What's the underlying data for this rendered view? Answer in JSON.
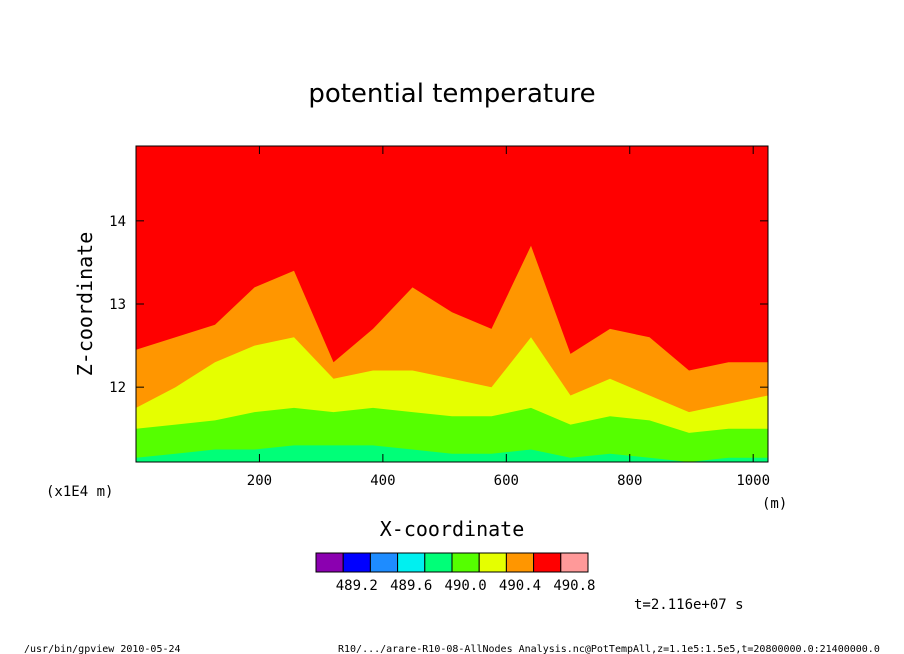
{
  "chart_data": {
    "type": "heatmap",
    "title": "potential temperature",
    "xlabel": "X-coordinate",
    "ylabel": "Z-coordinate",
    "x_unit": "(m)",
    "y_unit": "(x1E4 m)",
    "xlim": [
      0,
      1024
    ],
    "ylim": [
      11.1,
      14.9
    ],
    "x_ticks": [
      "200",
      "400",
      "600",
      "800",
      "1000"
    ],
    "y_ticks": [
      "12",
      "13",
      "14"
    ],
    "x_tick_values": [
      200,
      400,
      600,
      800,
      1000
    ],
    "y_tick_values": [
      12,
      13,
      14
    ],
    "colorbar": {
      "colors": [
        "#8b00b0",
        "#0000ff",
        "#1e8cff",
        "#00f0f0",
        "#00ff78",
        "#55ff00",
        "#e5ff00",
        "#ff9600",
        "#ff0000",
        "#ff9999"
      ],
      "labels": [
        "489.2",
        "489.6",
        "490.0",
        "490.4",
        "490.8"
      ]
    },
    "series": [
      {
        "name": "",
        "x": [
          0,
          64,
          128,
          192,
          256,
          320,
          384,
          448,
          512,
          576,
          640,
          704,
          768,
          832,
          896,
          960,
          1024
        ],
        "boundary_490_4": [
          12.45,
          12.6,
          12.75,
          13.2,
          13.4,
          12.3,
          12.7,
          13.2,
          12.9,
          12.7,
          13.7,
          12.4,
          12.7,
          12.6,
          12.2,
          12.3,
          12.3
        ],
        "boundary_490_2": [
          11.75,
          12.0,
          12.3,
          12.5,
          12.6,
          12.1,
          12.2,
          12.2,
          12.1,
          12.0,
          12.6,
          11.9,
          12.1,
          11.9,
          11.7,
          11.8,
          11.9
        ],
        "boundary_490_0": [
          11.5,
          11.55,
          11.6,
          11.7,
          11.75,
          11.7,
          11.75,
          11.7,
          11.65,
          11.65,
          11.75,
          11.55,
          11.65,
          11.6,
          11.45,
          11.5,
          11.5
        ],
        "boundary_489_8": [
          11.15,
          11.2,
          11.25,
          11.25,
          11.3,
          11.3,
          11.3,
          11.25,
          11.2,
          11.2,
          11.25,
          11.15,
          11.2,
          11.15,
          11.1,
          11.15,
          11.15
        ]
      }
    ]
  },
  "footer": {
    "time_label": "t=2.116e+07 s",
    "left": "/usr/bin/gpview  2010-05-24",
    "right": "R10/.../arare-R10-08-AllNodes_Analysis.nc@PotTempAll,z=1.1e5:1.5e5,t=20800000.0:21400000.0"
  }
}
